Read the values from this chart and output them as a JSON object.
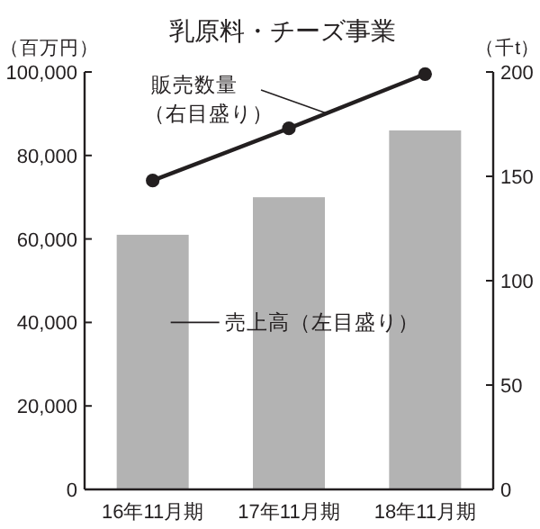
{
  "chart_data": {
    "type": "bar",
    "title": "乳原料・チーズ事業",
    "ylabel": "（百万円）",
    "y2label": "（千t）",
    "categories": [
      "16年11月期",
      "17年11月期",
      "18年11月期"
    ],
    "series": [
      {
        "color": "#b3b3b3",
        "values": [
          61000,
          70000,
          86000
        ]
      },
      {
        "name": "販売数量（右目盛り）",
        "type": "line",
        "axis": "y2",
        "color": "#231f20",
        "marker": "circle",
        "values": [
          148,
          173,
          199
        ]
      }
    ],
    "ylim": [
      0,
      100000
    ],
    "yticks": [
      {
        "value": 0,
        "label": "0"
      },
      {
        "value": 20000,
        "label": "20,000"
      },
      {
        "value": 40000,
        "label": "40,000"
      },
      {
        "value": 60000,
        "label": "60,000"
      },
      {
        "value": 80000,
        "label": "80,000"
      },
      {
        "value": 100000,
        "label": "100,000"
      }
    ],
    "y2lim": [
      0,
      200
    ],
    "y2ticks": [
      0,
      50,
      100,
      150,
      200
    ],
    "annotations": [
      "売上高（左目盛り）"
    ],
    "grid": false
  }
}
